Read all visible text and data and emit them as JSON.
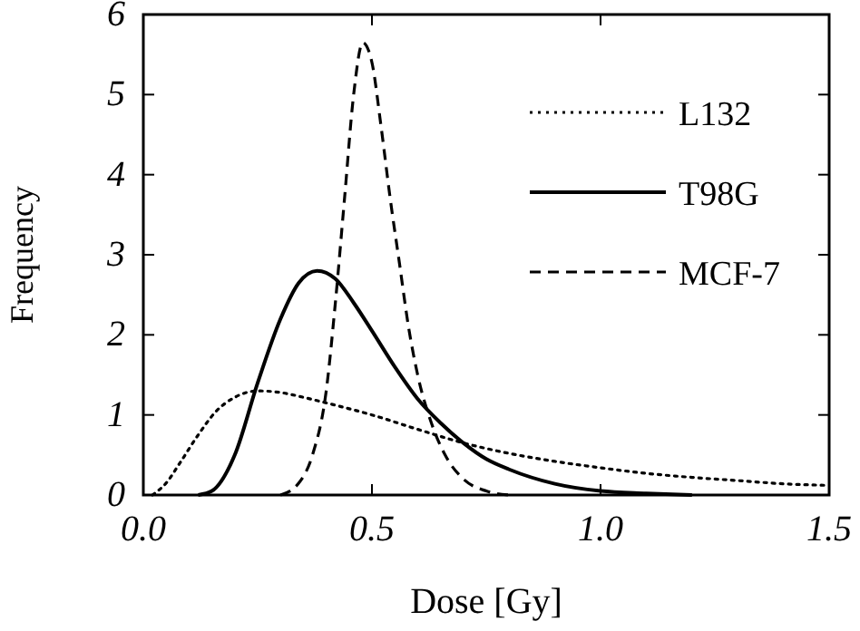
{
  "chart_data": {
    "type": "line",
    "xlabel": "Dose [Gy]",
    "ylabel": "Frequency",
    "xlim": [
      0,
      1.5
    ],
    "ylim": [
      0,
      6
    ],
    "xticks": [
      {
        "value": 0,
        "label": "0.0"
      },
      0.5,
      {
        "value": 1,
        "label": "1.0"
      },
      1.5
    ],
    "yticks": [
      0,
      1,
      2,
      3,
      4,
      5,
      6
    ],
    "grid": false,
    "legend": "top right",
    "series": [
      {
        "name": "L132",
        "color": "#000000",
        "line_style": "dotted",
        "x": [
          0.02,
          0.05,
          0.08,
          0.12,
          0.16,
          0.2,
          0.25,
          0.3,
          0.35,
          0.4,
          0.5,
          0.6,
          0.7,
          0.8,
          0.9,
          1.0,
          1.1,
          1.2,
          1.3,
          1.4,
          1.5
        ],
        "values": [
          0,
          0.15,
          0.4,
          0.75,
          1.05,
          1.22,
          1.3,
          1.28,
          1.22,
          1.15,
          1.0,
          0.82,
          0.65,
          0.52,
          0.42,
          0.34,
          0.27,
          0.22,
          0.18,
          0.14,
          0.12
        ]
      },
      {
        "name": "T98G",
        "color": "#000000",
        "line_style": "solid",
        "x": [
          0.12,
          0.15,
          0.2,
          0.25,
          0.3,
          0.34,
          0.38,
          0.42,
          0.46,
          0.5,
          0.55,
          0.6,
          0.65,
          0.7,
          0.75,
          0.8,
          0.9,
          1.0,
          1.1,
          1.2
        ],
        "values": [
          0,
          0.05,
          0.5,
          1.4,
          2.2,
          2.65,
          2.8,
          2.7,
          2.4,
          2.05,
          1.6,
          1.2,
          0.9,
          0.65,
          0.45,
          0.32,
          0.14,
          0.05,
          0.02,
          0
        ]
      },
      {
        "name": "MCF-7",
        "color": "#000000",
        "line_style": "dashed",
        "x": [
          0.3,
          0.34,
          0.37,
          0.4,
          0.42,
          0.44,
          0.46,
          0.48,
          0.5,
          0.52,
          0.54,
          0.56,
          0.58,
          0.6,
          0.63,
          0.66,
          0.7,
          0.75,
          0.8
        ],
        "values": [
          0,
          0.15,
          0.5,
          1.3,
          2.4,
          3.7,
          5.0,
          5.65,
          5.4,
          4.6,
          3.7,
          2.9,
          2.1,
          1.5,
          0.9,
          0.5,
          0.2,
          0.05,
          0
        ]
      }
    ]
  }
}
